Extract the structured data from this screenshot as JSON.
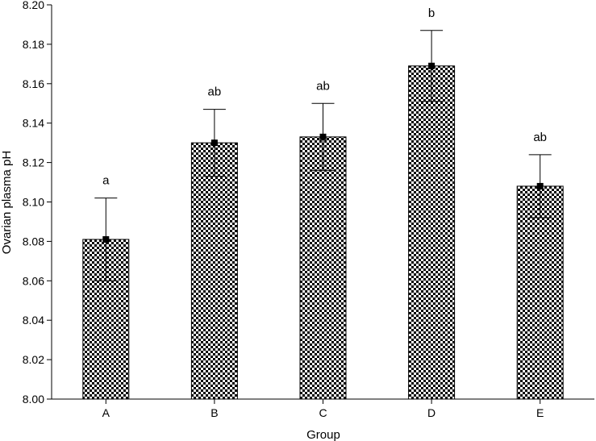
{
  "chart_data": {
    "type": "bar",
    "title": "",
    "xlabel": "Group",
    "ylabel": "Ovarian plasma pH",
    "categories": [
      "A",
      "B",
      "C",
      "D",
      "E"
    ],
    "values": [
      8.081,
      8.13,
      8.133,
      8.169,
      8.108
    ],
    "errors": [
      0.021,
      0.017,
      0.017,
      0.018,
      0.016
    ],
    "annotations": [
      "a",
      "ab",
      "ab",
      "b",
      "ab"
    ],
    "ylim": [
      8.0,
      8.2
    ],
    "yticks": [
      "8.00",
      "8.02",
      "8.04",
      "8.06",
      "8.08",
      "8.10",
      "8.12",
      "8.14",
      "8.16",
      "8.18",
      "8.20"
    ],
    "grid": false,
    "legend": "none",
    "bar_pattern": "checkerboard",
    "colors": {
      "bar_dark": "#000000",
      "bar_light": "#ffffff",
      "axis": "#000000"
    }
  }
}
